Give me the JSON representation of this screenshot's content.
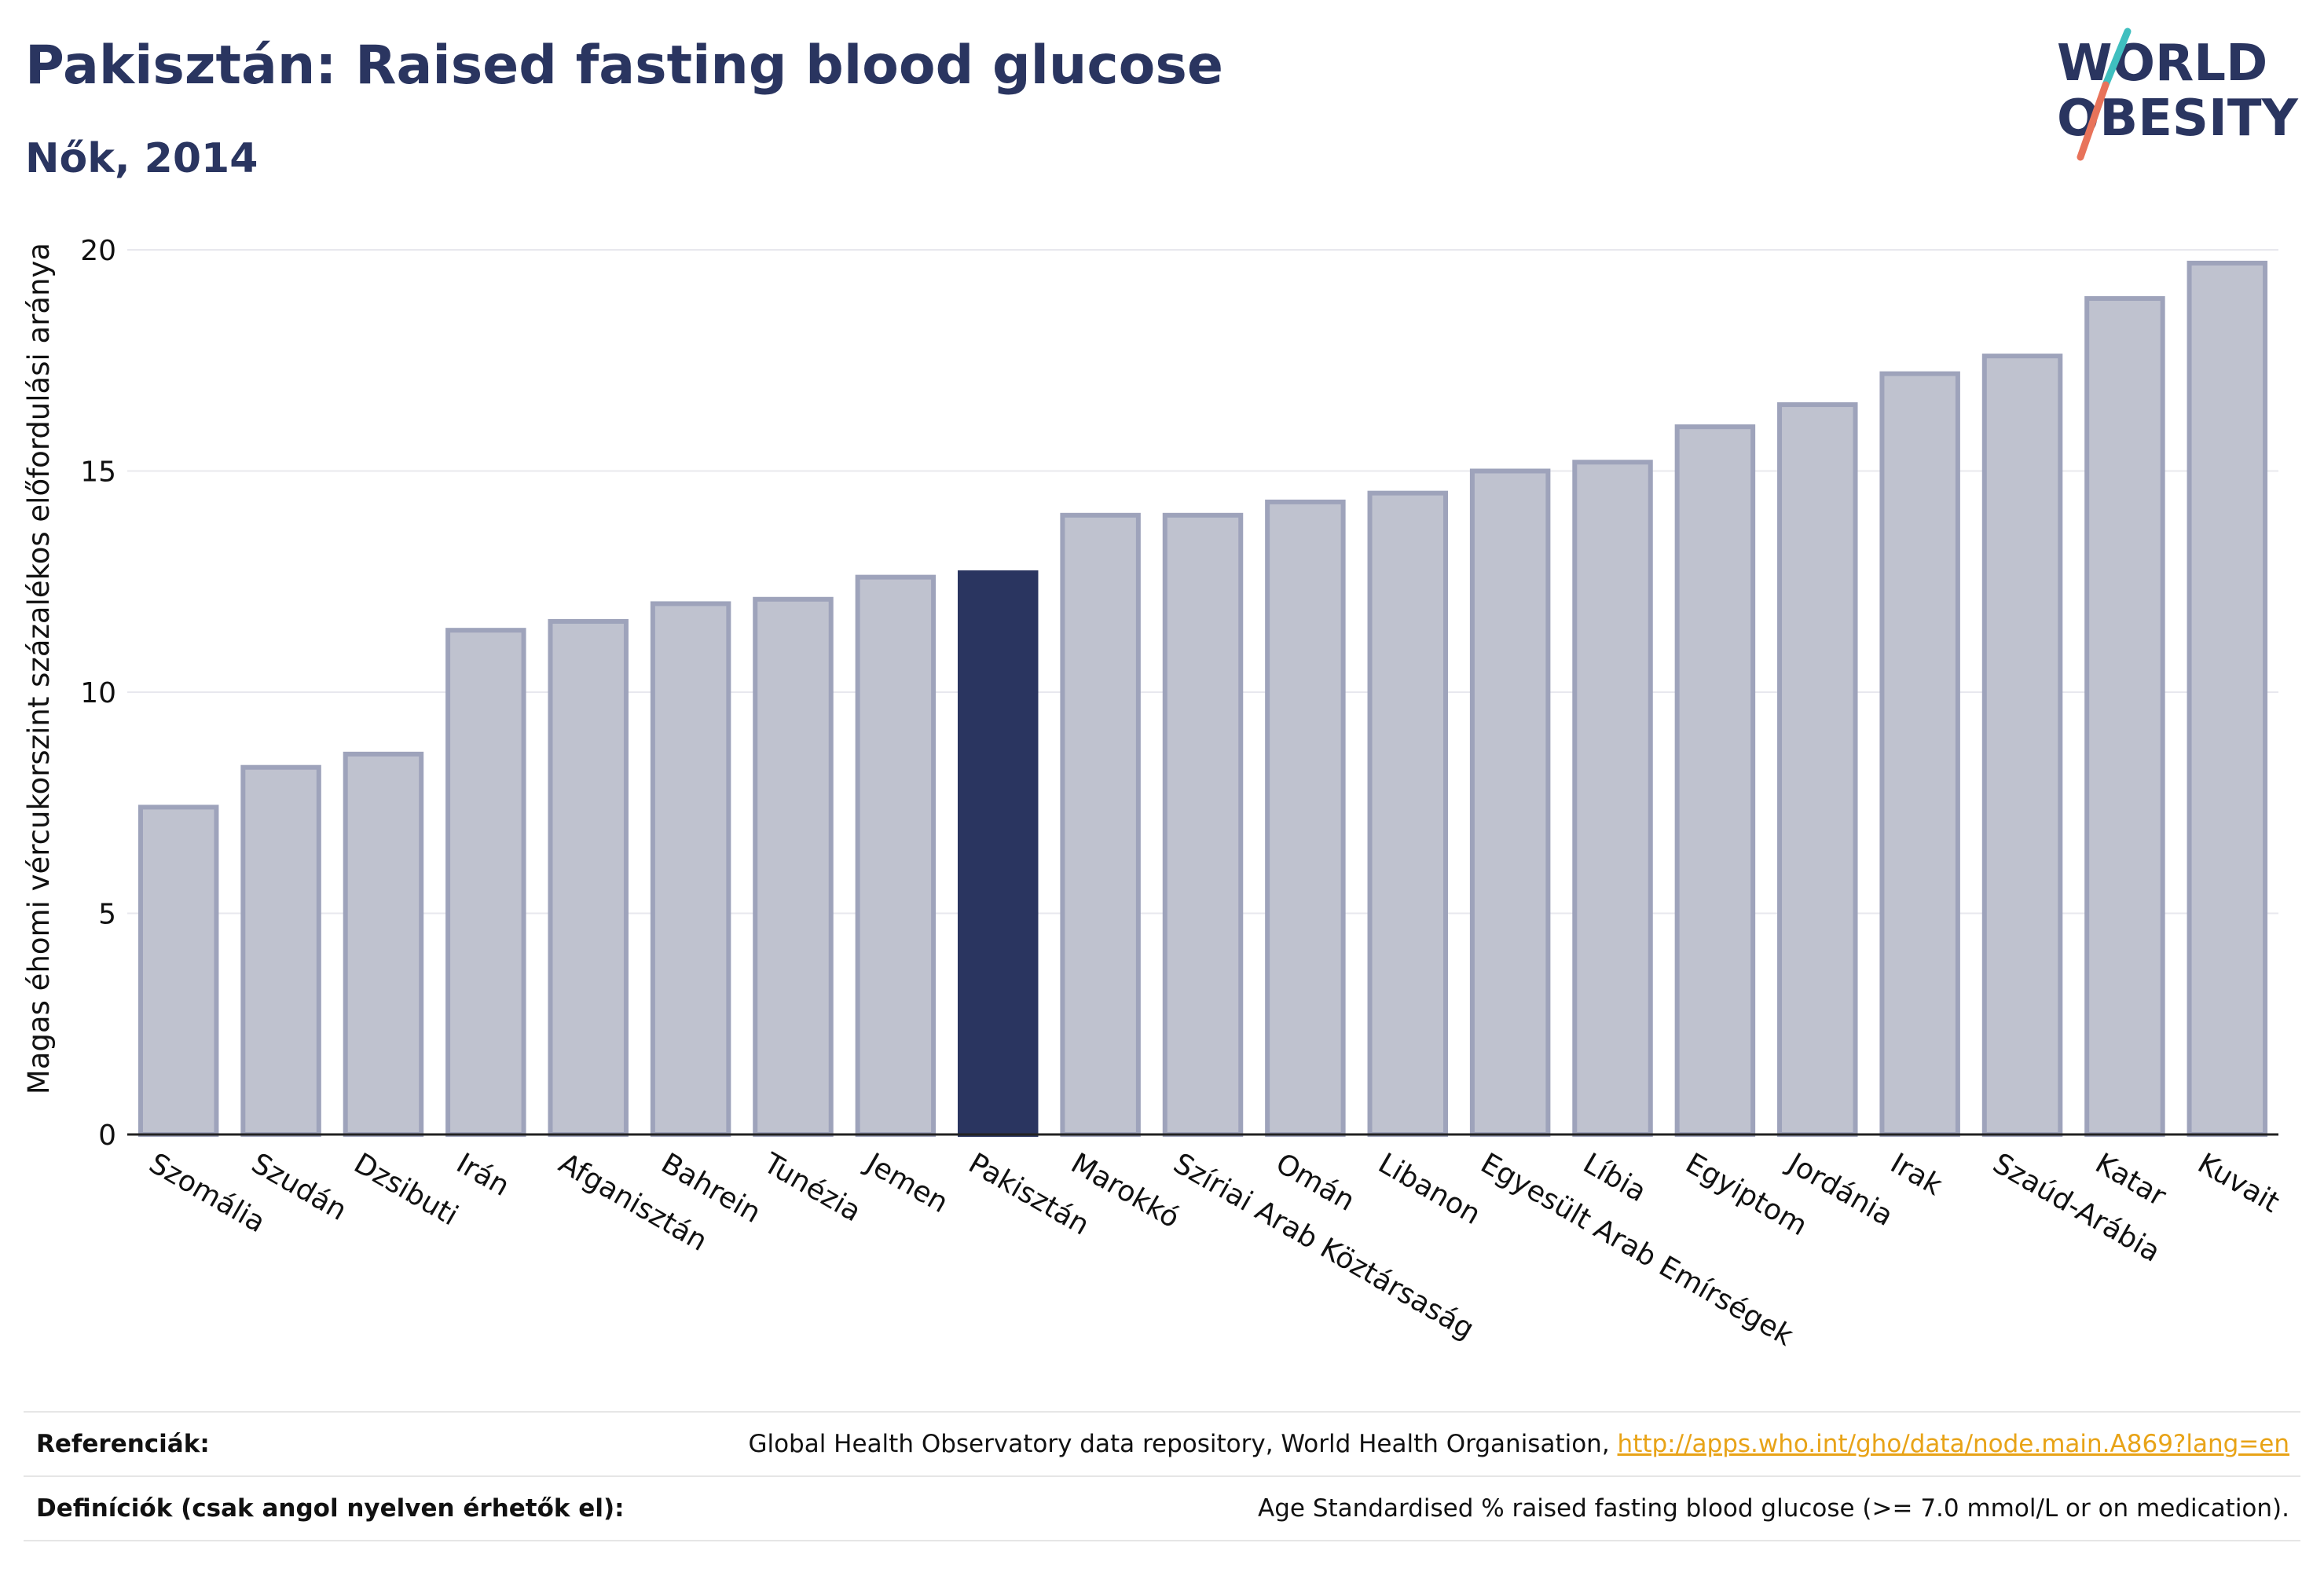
{
  "header": {
    "title": "Pakisztán: Raised fasting blood glucose",
    "subtitle": "Nők, 2014"
  },
  "logo": {
    "line1": "WORLD",
    "line2": "OBESITY",
    "accent_colors": [
      "#3fbfbf",
      "#e8735a"
    ]
  },
  "colors": {
    "bar_default": "#bfc2cf",
    "bar_border": "#9ea3bb",
    "bar_highlight": "#2a3560",
    "grid": "#e8e8ee"
  },
  "chart_data": {
    "type": "bar",
    "title": "Pakisztán: Raised fasting blood glucose",
    "subtitle": "Nők, 2014",
    "xlabel": "",
    "ylabel": "Magas éhomi vércukorszint százalékos előfordulási aránya",
    "ylim": [
      0,
      20
    ],
    "yticks": [
      0,
      5,
      10,
      15,
      20
    ],
    "grid": true,
    "highlight": "Pakisztán",
    "categories": [
      "Szomália",
      "Szudán",
      "Dzsibuti",
      "Irán",
      "Afganisztán",
      "Bahrein",
      "Tunézia",
      "Jemen",
      "Pakisztán",
      "Marokkó",
      "Szíriai Arab Köztársaság",
      "Omán",
      "Libanon",
      "Egyesült Arab Emírségek",
      "Líbia",
      "Egyiptom",
      "Jordánia",
      "Irak",
      "Szaúd-Arábia",
      "Katar",
      "Kuvait"
    ],
    "values": [
      7.4,
      8.3,
      8.6,
      11.4,
      11.6,
      12.0,
      12.1,
      12.6,
      12.7,
      14.0,
      14.0,
      14.3,
      14.5,
      15.0,
      15.2,
      16.0,
      16.5,
      17.2,
      17.6,
      18.9,
      19.7
    ]
  },
  "footer": {
    "references_label": "Referenciák:",
    "references_text": "Global Health Observatory data repository, World Health Organisation, ",
    "references_link": "http://apps.who.int/gho/data/node.main.A869?lang=en",
    "definitions_label": "Definíciók (csak angol nyelven érhetők el):",
    "definitions_text": "Age Standardised % raised fasting blood glucose (>= 7.0 mmol/L or on medication)."
  }
}
